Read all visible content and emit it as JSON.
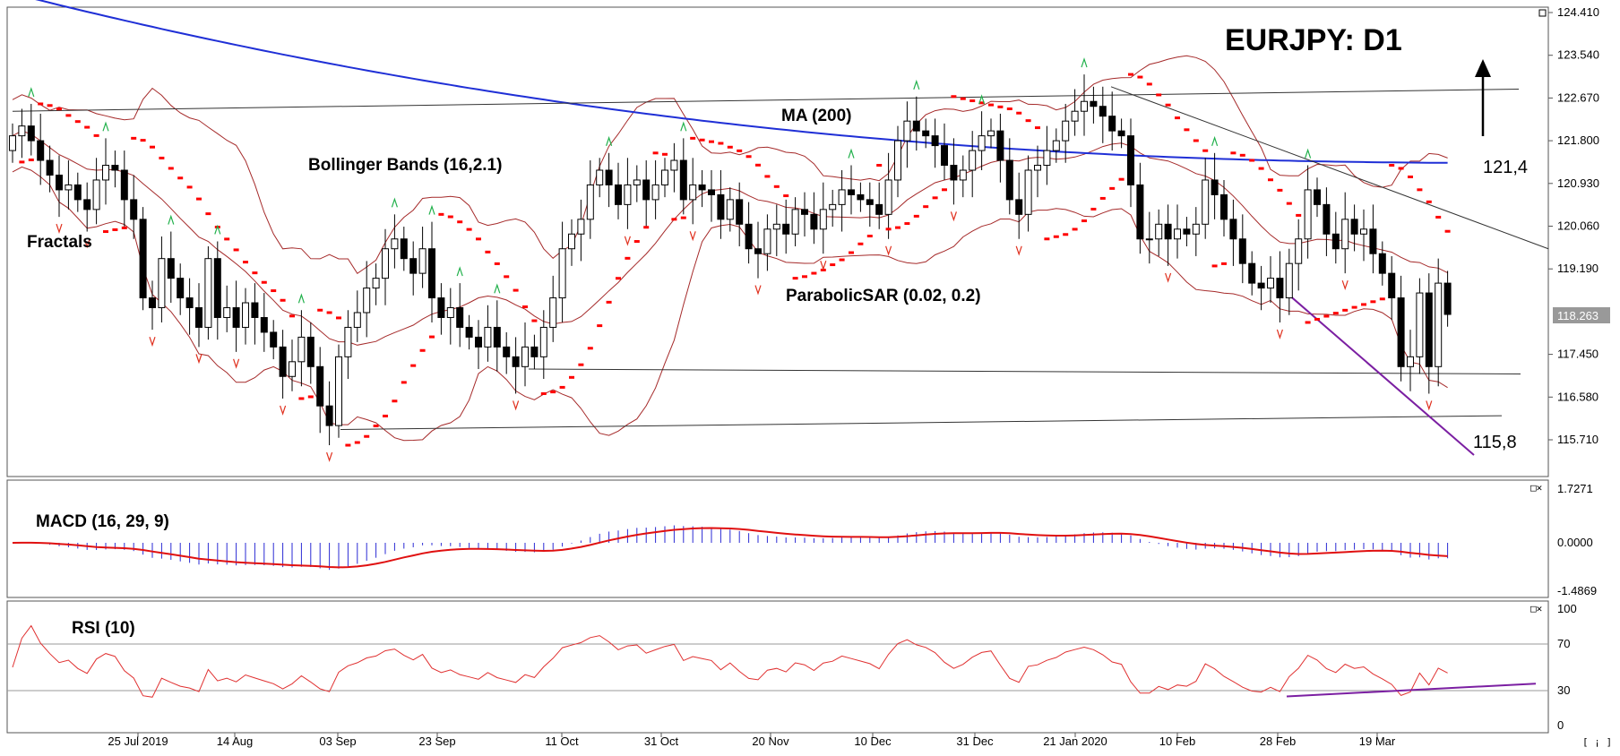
{
  "chart_data": {
    "type": "candlestick",
    "symbol": "EURJPY",
    "timeframe": "D1",
    "title": "EURJPY: D1",
    "price_scale": [
      "124.410",
      "123.540",
      "122.670",
      "121.800",
      "120.930",
      "120.060",
      "119.190",
      "118.263",
      "117.450",
      "116.580",
      "115.710"
    ],
    "current_price": "118.263",
    "macd_scale": [
      "1.7271",
      "0.0000",
      "-1.4869"
    ],
    "rsi_scale": [
      "100",
      "70",
      "30",
      "0"
    ],
    "x_ticks": [
      "25 Jul 2019",
      "14 Aug",
      "03 Sep",
      "23 Sep",
      "11 Oct",
      "31 Oct",
      "20 Nov",
      "10 Dec",
      "31 Dec",
      "21 Jan 2020",
      "10 Feb",
      "28 Feb",
      "19 Mar"
    ],
    "indicator_labels": {
      "fractals": "Fractals",
      "bollinger": "Bollinger Bands (16,2.1)",
      "ma": "MA (200)",
      "sar": "ParabolicSAR (0.02, 0.2)",
      "macd": "MACD (16, 29, 9)",
      "rsi": "RSI (10)"
    },
    "levels": {
      "resistance": "121,4",
      "support": "115,8"
    },
    "close": [
      121.9,
      122.1,
      121.8,
      121.4,
      121.1,
      120.8,
      120.9,
      120.6,
      120.4,
      121.0,
      121.3,
      121.2,
      120.6,
      120.2,
      118.6,
      118.4,
      119.4,
      119.0,
      118.6,
      118.4,
      118.0,
      119.4,
      118.2,
      118.4,
      118.0,
      118.5,
      118.2,
      117.9,
      117.6,
      117.0,
      117.3,
      117.8,
      117.2,
      116.4,
      116.0,
      117.4,
      118.0,
      118.3,
      118.8,
      119.0,
      119.6,
      119.8,
      119.4,
      119.1,
      119.6,
      118.6,
      118.2,
      118.4,
      118.0,
      117.8,
      117.6,
      118.0,
      117.6,
      117.4,
      117.2,
      117.6,
      117.4,
      118.0,
      118.6,
      119.6,
      119.9,
      120.2,
      120.9,
      121.2,
      120.9,
      120.5,
      120.9,
      121.0,
      120.6,
      120.9,
      121.2,
      121.4,
      120.6,
      120.9,
      120.8,
      120.7,
      120.2,
      120.6,
      120.1,
      119.6,
      119.5,
      120.0,
      120.1,
      119.9,
      120.4,
      120.3,
      120.0,
      120.4,
      120.5,
      120.8,
      120.7,
      120.6,
      120.5,
      120.3,
      121.0,
      121.8,
      122.2,
      122.0,
      121.9,
      121.7,
      121.3,
      121.0,
      121.2,
      121.6,
      121.9,
      122.0,
      121.4,
      120.6,
      120.3,
      121.2,
      121.3,
      121.6,
      121.8,
      122.2,
      122.4,
      122.6,
      122.5,
      122.3,
      122.0,
      121.9,
      120.9,
      119.8,
      119.8,
      120.1,
      119.8,
      120.0,
      119.9,
      120.1,
      121.0,
      120.7,
      120.2,
      119.8,
      119.3,
      118.9,
      118.8,
      119.0,
      118.6,
      119.3,
      119.8,
      120.8,
      120.5,
      119.9,
      119.6,
      120.2,
      119.9,
      120.0,
      119.5,
      119.1,
      118.6,
      117.2,
      117.4,
      118.7,
      117.2,
      118.9,
      118.263
    ]
  }
}
